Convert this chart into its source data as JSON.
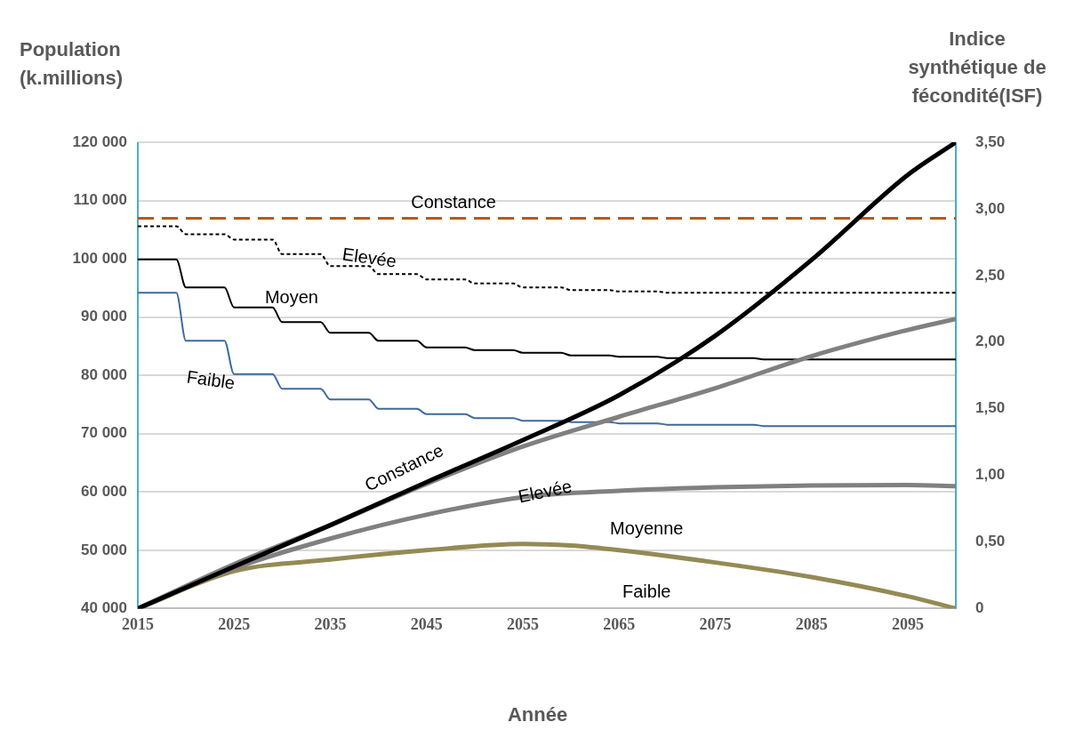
{
  "chart_data": {
    "type": "line",
    "xlabel": "Année",
    "ylabel": "Population (k.millions)",
    "y2label": "Indice synthétique de fécondité(ISF)",
    "xlim": [
      2015,
      2100
    ],
    "xticks": [
      2015,
      2025,
      2035,
      2045,
      2055,
      2065,
      2075,
      2085,
      2095
    ],
    "ylim": [
      40000,
      120000
    ],
    "yticks": [
      {
        "value": 40000,
        "label": "40 000"
      },
      {
        "value": 50000,
        "label": "50 000"
      },
      {
        "value": 60000,
        "label": "60 000"
      },
      {
        "value": 70000,
        "label": "70 000"
      },
      {
        "value": 80000,
        "label": "80 000"
      },
      {
        "value": 90000,
        "label": "90 000"
      },
      {
        "value": 100000,
        "label": "100 000"
      },
      {
        "value": 110000,
        "label": "110 000"
      },
      {
        "value": 120000,
        "label": "120 000"
      }
    ],
    "y2lim": [
      0,
      3.5
    ],
    "y2ticks": [
      {
        "value": 0,
        "label": "0"
      },
      {
        "value": 0.5,
        "label": "0,50"
      },
      {
        "value": 1,
        "label": "1,00"
      },
      {
        "value": 1.5,
        "label": "1,50"
      },
      {
        "value": 2,
        "label": "2,00"
      },
      {
        "value": 2.5,
        "label": "2,50"
      },
      {
        "value": 3,
        "label": "3,00"
      },
      {
        "value": 3.5,
        "label": "3,50"
      }
    ],
    "grid": "y",
    "legend": false,
    "marker": "none",
    "series": [
      {
        "color": "#000000",
        "line_style": "solid",
        "x": [
          2015,
          2025,
          2035,
          2045,
          2055,
          2065,
          2075,
          2085,
          2095,
          2100
        ],
        "values": [
          40000,
          47200,
          54300,
          61700,
          68900,
          76600,
          86800,
          99800,
          114400,
          120000
        ]
      },
      {
        "color": "#808080",
        "line_style": "solid",
        "x": [
          2015,
          2025,
          2035,
          2045,
          2055,
          2065,
          2075,
          2085,
          2095,
          2100
        ],
        "values": [
          40000,
          47600,
          54300,
          61400,
          67800,
          72900,
          77800,
          83300,
          87800,
          89700
        ]
      },
      {
        "color": "#808080",
        "line_style": "solid",
        "x": [
          2015,
          2025,
          2035,
          2045,
          2055,
          2065,
          2075,
          2085,
          2095,
          2100
        ],
        "values": [
          40000,
          46900,
          52000,
          56100,
          59100,
          60200,
          60800,
          61100,
          61200,
          61000
        ]
      },
      {
        "color": "#948a54",
        "line_style": "solid",
        "x": [
          2015,
          2025,
          2035,
          2045,
          2055,
          2060,
          2065,
          2075,
          2085,
          2095,
          2100
        ],
        "values": [
          40000,
          46400,
          48400,
          50000,
          51100,
          50800,
          50000,
          47900,
          45400,
          42100,
          40000
        ]
      },
      {
        "axis": "y2",
        "color": "#b55a14",
        "line_style": "dashed",
        "x": [
          2015,
          2100
        ],
        "values": [
          2.93,
          2.93
        ]
      },
      {
        "axis": "y2",
        "color": "#000000",
        "line_style": "dotted",
        "x": [
          2015,
          2019,
          2020,
          2024,
          2025,
          2029,
          2030,
          2034,
          2035,
          2039,
          2040,
          2044,
          2045,
          2049,
          2050,
          2054,
          2055,
          2059,
          2060,
          2064,
          2065,
          2069,
          2070,
          2100
        ],
        "values": [
          2.87,
          2.87,
          2.81,
          2.81,
          2.77,
          2.77,
          2.66,
          2.66,
          2.57,
          2.57,
          2.51,
          2.51,
          2.47,
          2.47,
          2.44,
          2.44,
          2.41,
          2.41,
          2.39,
          2.39,
          2.38,
          2.38,
          2.37,
          2.37
        ]
      },
      {
        "axis": "y2",
        "color": "#000000",
        "line_style": "solid",
        "x": [
          2015,
          2019,
          2020,
          2024,
          2025,
          2029,
          2030,
          2034,
          2035,
          2039,
          2040,
          2044,
          2045,
          2049,
          2050,
          2054,
          2055,
          2059,
          2060,
          2064,
          2065,
          2069,
          2070,
          2079,
          2080,
          2100
        ],
        "values": [
          2.62,
          2.62,
          2.41,
          2.41,
          2.26,
          2.26,
          2.15,
          2.15,
          2.07,
          2.07,
          2.01,
          2.01,
          1.96,
          1.96,
          1.94,
          1.94,
          1.92,
          1.92,
          1.9,
          1.9,
          1.89,
          1.89,
          1.88,
          1.88,
          1.87,
          1.87
        ]
      },
      {
        "axis": "y2",
        "color": "#3d6a9e",
        "line_style": "solid",
        "x": [
          2015,
          2019,
          2020,
          2024,
          2025,
          2029,
          2030,
          2034,
          2035,
          2039,
          2040,
          2044,
          2045,
          2049,
          2050,
          2054,
          2055,
          2059,
          2060,
          2064,
          2065,
          2069,
          2070,
          2079,
          2080,
          2100
        ],
        "values": [
          2.37,
          2.37,
          2.01,
          2.01,
          1.76,
          1.76,
          1.65,
          1.65,
          1.57,
          1.57,
          1.5,
          1.5,
          1.46,
          1.46,
          1.43,
          1.43,
          1.41,
          1.41,
          1.4,
          1.4,
          1.39,
          1.39,
          1.38,
          1.38,
          1.37,
          1.37
        ]
      }
    ],
    "annotations": [
      "Constance",
      "Elevée",
      "Moyen",
      "Faible",
      "Constance",
      "Elevée",
      "Moyenne",
      "Faible"
    ]
  }
}
